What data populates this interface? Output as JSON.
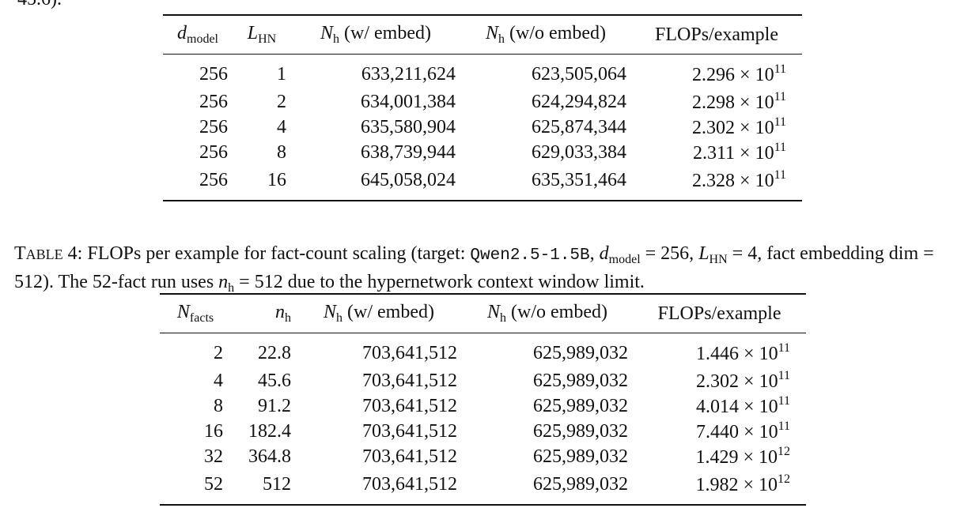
{
  "fragment": "45.6).",
  "table3": {
    "headers": [
      "d_model",
      "L_HN",
      "N_h (w/ embed)",
      "N_h (w/o embed)",
      "FLOPs/example"
    ],
    "rows": [
      [
        "256",
        "1",
        "633,211,624",
        "623,505,064",
        "2.296",
        "11"
      ],
      [
        "256",
        "2",
        "634,001,384",
        "624,294,824",
        "2.298",
        "11"
      ],
      [
        "256",
        "4",
        "635,580,904",
        "625,874,344",
        "2.302",
        "11"
      ],
      [
        "256",
        "8",
        "638,739,944",
        "629,033,384",
        "2.311",
        "11"
      ],
      [
        "256",
        "16",
        "645,058,024",
        "635,351,464",
        "2.328",
        "11"
      ]
    ]
  },
  "caption": {
    "label": "TABLE 4:",
    "text": "FLOPs per example for fact-count scaling (target: Qwen2.5-1.5B, d_model = 256, L_HN = 4, fact embedding dim = 512). The 52-fact run uses n_h = 512 due to the hypernetwork context window limit.",
    "model_name": "Qwen2.5-1.5B"
  },
  "table4": {
    "headers": [
      "N_facts",
      "n_h",
      "N_h (w/ embed)",
      "N_h (w/o embed)",
      "FLOPs/example"
    ],
    "rows": [
      [
        "2",
        "22.8",
        "703,641,512",
        "625,989,032",
        "1.446",
        "11"
      ],
      [
        "4",
        "45.6",
        "703,641,512",
        "625,989,032",
        "2.302",
        "11"
      ],
      [
        "8",
        "91.2",
        "703,641,512",
        "625,989,032",
        "4.014",
        "11"
      ],
      [
        "16",
        "182.4",
        "703,641,512",
        "625,989,032",
        "7.440",
        "11"
      ],
      [
        "32",
        "364.8",
        "703,641,512",
        "625,989,032",
        "1.429",
        "12"
      ],
      [
        "52",
        "512",
        "703,641,512",
        "625,989,032",
        "1.982",
        "12"
      ]
    ]
  }
}
